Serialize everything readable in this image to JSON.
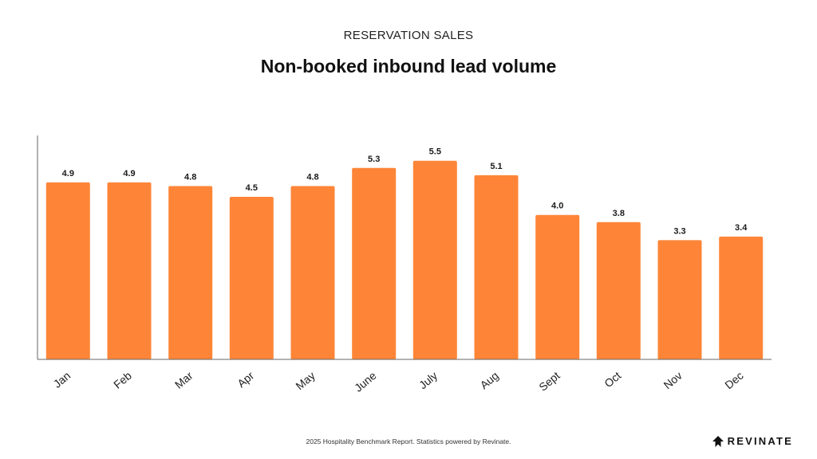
{
  "header": {
    "subtitle": "RESERVATION SALES",
    "title": "Non-booked inbound lead volume"
  },
  "footer": {
    "note": "2025 Hospitality Benchmark Report. Statistics powered by Revinate.",
    "brand": "REVINATE"
  },
  "colors": {
    "bar": "#FE8537",
    "axis": "#666666"
  },
  "chart_data": {
    "type": "bar",
    "title": "Non-booked inbound lead volume",
    "categories": [
      "Jan",
      "Feb",
      "Mar",
      "Apr",
      "May",
      "June",
      "July",
      "Aug",
      "Sept",
      "Oct",
      "Nov",
      "Dec"
    ],
    "values": [
      4.9,
      4.9,
      4.8,
      4.5,
      4.8,
      5.3,
      5.5,
      5.1,
      4.0,
      3.8,
      3.3,
      3.4
    ],
    "data_labels": [
      "4.9",
      "4.9",
      "4.8",
      "4.5",
      "4.8",
      "5.3",
      "5.5",
      "5.1",
      "4.0",
      "3.8",
      "3.3",
      "3.4"
    ],
    "xlabel": "",
    "ylabel": "",
    "ylim": [
      0,
      6.2
    ],
    "grid": false,
    "legend": "none"
  }
}
